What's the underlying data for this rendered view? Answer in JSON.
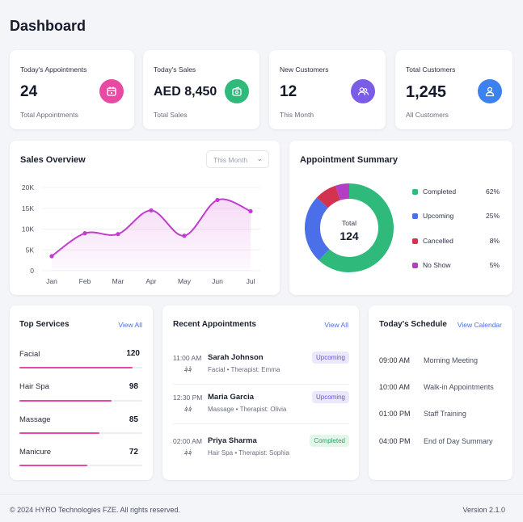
{
  "page": {
    "title": "Dashboard"
  },
  "stats": [
    {
      "label": "Today's Appointments",
      "value": "24",
      "sub": "Total Appointments",
      "icon": "calendar-icon",
      "color": "#e84aa3"
    },
    {
      "label": "Today's Sales",
      "value": "AED 8,450",
      "sub": "Total Sales",
      "icon": "wallet-icon",
      "color": "#2fb97a"
    },
    {
      "label": "New Customers",
      "value": "12",
      "sub": "This Month",
      "icon": "users-icon",
      "color": "#7a5ce6"
    },
    {
      "label": "Total Customers",
      "value": "1,245",
      "sub": "All Customers",
      "icon": "user-icon",
      "color": "#3b82f0"
    }
  ],
  "sales_overview": {
    "title": "Sales Overview",
    "period": "This Month",
    "chevron": "⌄"
  },
  "chart_data": {
    "type": "line",
    "categories": [
      "Jan",
      "Feb",
      "Mar",
      "Apr",
      "May",
      "Jun",
      "Jul"
    ],
    "values": [
      3500,
      9000,
      8800,
      14500,
      8400,
      17000,
      14300
    ],
    "ylim": [
      0,
      20000
    ],
    "yticks": [
      {
        "value": 0,
        "label": "0"
      },
      {
        "value": 5000,
        "label": "5K"
      },
      {
        "value": 10000,
        "label": "10K"
      },
      {
        "value": 15000,
        "label": "15K"
      },
      {
        "value": 20000,
        "label": "20K"
      }
    ],
    "grid": true,
    "color": "#c23ccf"
  },
  "appointment_summary": {
    "title": "Appointment Summary",
    "center_label": "Total",
    "center_value": "124",
    "items": [
      {
        "name": "Completed",
        "pct": "62%",
        "value": 62,
        "color": "#2fb97a"
      },
      {
        "name": "Upcoming",
        "pct": "25%",
        "value": 25,
        "color": "#4a6fe8"
      },
      {
        "name": "Cancelled",
        "pct": "8%",
        "value": 8,
        "color": "#d2344f"
      },
      {
        "name": "No Show",
        "pct": "5%",
        "value": 5,
        "color": "#b43ec2"
      }
    ]
  },
  "top_services": {
    "title": "Top Services",
    "view_all": "View All",
    "max": 120,
    "items": [
      {
        "name": "Facial",
        "count": "120",
        "value": 120
      },
      {
        "name": "Hair Spa",
        "count": "98",
        "value": 98
      },
      {
        "name": "Massage",
        "count": "85",
        "value": 85
      },
      {
        "name": "Manicure",
        "count": "72",
        "value": 72
      }
    ]
  },
  "recent_appointments": {
    "title": "Recent Appointments",
    "view_all": "View All",
    "items": [
      {
        "time": "11:00 AM",
        "time2": "؋؋",
        "name": "Sarah Johnson",
        "detail": "Facial  •  Therapist: Emma",
        "status": "Upcoming",
        "status_key": "upcoming"
      },
      {
        "time": "12:30 PM",
        "time2": "؋؋",
        "name": "Maria Garcia",
        "detail": "Massage  •  Therapist: Olivia",
        "status": "Upcoming",
        "status_key": "upcoming"
      },
      {
        "time": "02:00 AM",
        "time2": "؋؋",
        "name": "Priya Sharma",
        "detail": "Hair Spa  •  Therapist: Sophia",
        "status": "Completed",
        "status_key": "completed"
      }
    ]
  },
  "schedule": {
    "title": "Today's Schedule",
    "view_link": "View Calendar",
    "items": [
      {
        "time": "09:00 AM",
        "event": "Morning Meeting"
      },
      {
        "time": "10:00 AM",
        "event": "Walk-in Appointments"
      },
      {
        "time": "01:00 PM",
        "event": "Staff Training"
      },
      {
        "time": "04:00 PM",
        "event": "End of Day Summary"
      }
    ]
  },
  "footer": {
    "copyright": "© 2024 HYRO Technologies FZE. All rights reserved.",
    "version": "Version 2.1.0"
  }
}
